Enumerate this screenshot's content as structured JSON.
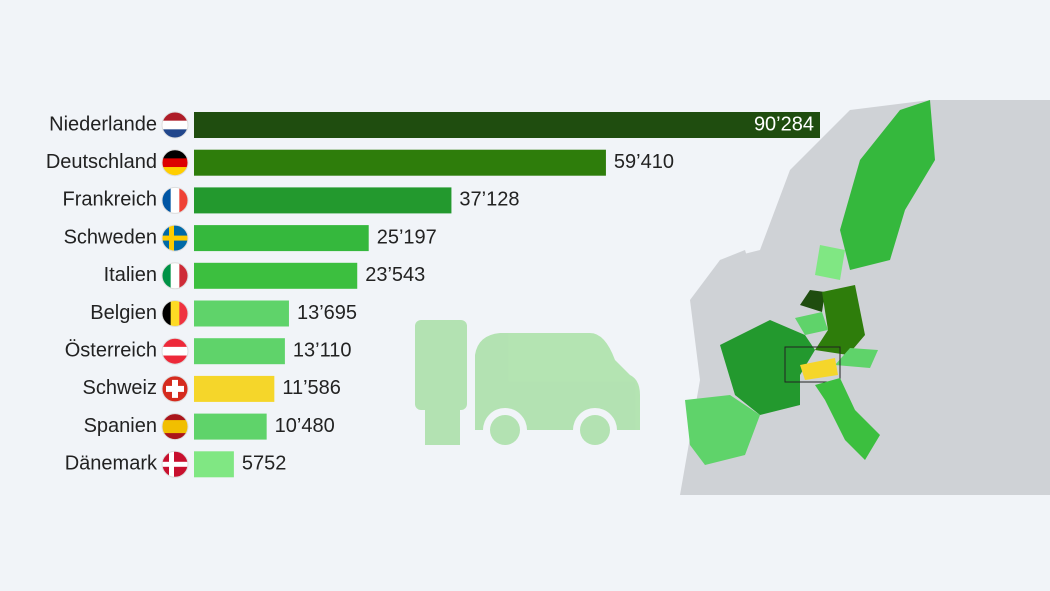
{
  "chart_data": {
    "type": "bar",
    "orientation": "horizontal",
    "categories": [
      "Niederlande",
      "Deutschland",
      "Frankreich",
      "Schweden",
      "Italien",
      "Belgien",
      "Österreich",
      "Schweiz",
      "Spanien",
      "Dänemark"
    ],
    "values": [
      90284,
      59410,
      37128,
      25197,
      23543,
      13695,
      13110,
      11586,
      10480,
      5752
    ],
    "value_labels": [
      "90’284",
      "59’410",
      "37’128",
      "25’197",
      "23’543",
      "13’695",
      "13’110",
      "11’586",
      "10’480",
      "5752"
    ],
    "colors": [
      "#1f4d0f",
      "#2e7d0b",
      "#23992e",
      "#35b83d",
      "#3cbf3f",
      "#5fd36a",
      "#5fd36a",
      "#f5d62a",
      "#5fd36a",
      "#80e783"
    ]
  }
}
